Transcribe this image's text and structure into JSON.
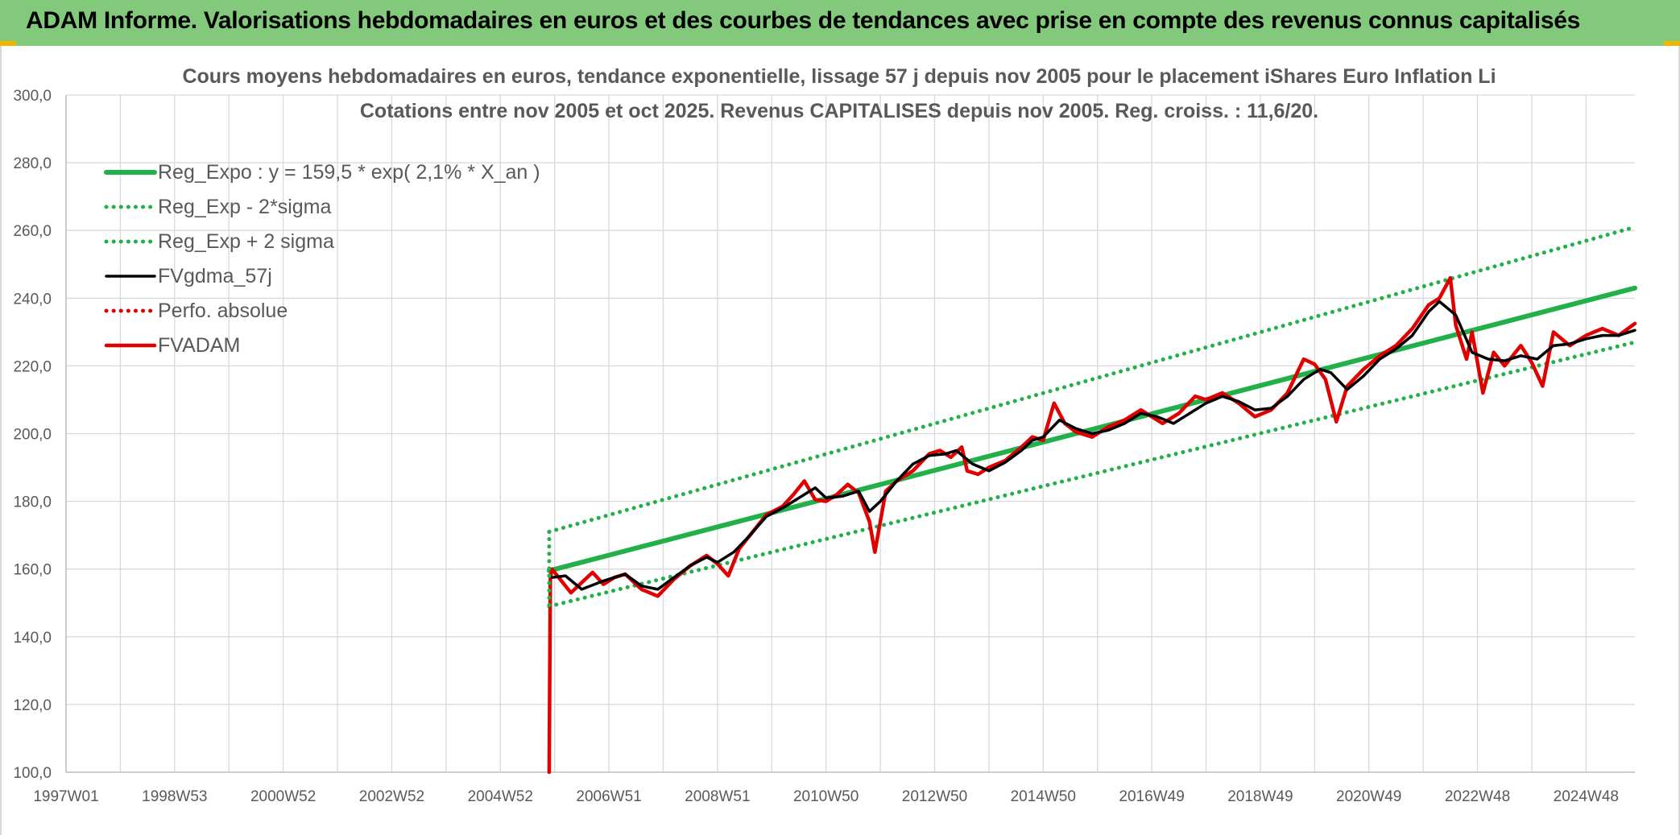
{
  "banner": {
    "title": "ADAM Informe. Valorisations hebdomadaires en euros et des courbes de tendances avec prise en compte des revenus connus capitalisés",
    "color": "#82c97c"
  },
  "chart_data": {
    "type": "line",
    "title": "Cours moyens hebdomadaires en euros, tendance exponentielle, lissage 57 j depuis nov 2005 pour le placement iShares Euro Inflation Li",
    "subtitle": "Cotations entre nov 2005 et oct 2025. Revenus CAPITALISES depuis nov 2005. Reg. croiss. : 11,6/20.",
    "xlabel": "",
    "ylabel": "",
    "ylim": [
      100,
      300
    ],
    "y_ticks": [
      "100,0",
      "120,0",
      "140,0",
      "160,0",
      "180,0",
      "200,0",
      "220,0",
      "240,0",
      "260,0",
      "280,0",
      "300,0"
    ],
    "x_range_years": [
      1997.0,
      2025.9
    ],
    "x_ticks": [
      {
        "label": "1997W01",
        "year": 1997.0
      },
      {
        "label": "1998W53",
        "year": 1999.0
      },
      {
        "label": "2000W52",
        "year": 2001.0
      },
      {
        "label": "2002W52",
        "year": 2003.0
      },
      {
        "label": "2004W52",
        "year": 2005.0
      },
      {
        "label": "2006W51",
        "year": 2007.0
      },
      {
        "label": "2008W51",
        "year": 2009.0
      },
      {
        "label": "2010W50",
        "year": 2011.0
      },
      {
        "label": "2012W50",
        "year": 2013.0
      },
      {
        "label": "2014W50",
        "year": 2015.0
      },
      {
        "label": "2016W49",
        "year": 2017.0
      },
      {
        "label": "2018W49",
        "year": 2019.0
      },
      {
        "label": "2020W49",
        "year": 2021.0
      },
      {
        "label": "2022W48",
        "year": 2023.0
      },
      {
        "label": "2024W48",
        "year": 2025.0
      }
    ],
    "grid": true,
    "legend_position": "top-left",
    "series": [
      {
        "name": "Reg_Expo : y = 159,5 * exp( 2,1% *  X_an )",
        "color": "#22b04b",
        "style": "solid",
        "x": [
          2005.9,
          2025.9
        ],
        "y": [
          159.5,
          243.0
        ]
      },
      {
        "name": "Reg_Exp - 2*sigma",
        "color": "#22b04b",
        "style": "dotted",
        "x": [
          2005.9,
          2025.9
        ],
        "y": [
          149.0,
          227.0
        ]
      },
      {
        "name": "Reg_Exp + 2 sigma",
        "color": "#22b04b",
        "style": "dotted",
        "x": [
          2005.9,
          2025.9
        ],
        "y": [
          171.0,
          261.0
        ]
      },
      {
        "name": "FVgdma_57j",
        "color": "#000000",
        "style": "solid",
        "x": [
          2005.95,
          2006.2,
          2006.5,
          2006.9,
          2007.3,
          2007.6,
          2007.9,
          2008.2,
          2008.5,
          2008.8,
          2009.0,
          2009.3,
          2009.6,
          2009.9,
          2010.2,
          2010.5,
          2010.8,
          2011.0,
          2011.3,
          2011.6,
          2011.8,
          2012.0,
          2012.3,
          2012.6,
          2012.9,
          2013.2,
          2013.4,
          2013.7,
          2014.0,
          2014.3,
          2014.6,
          2014.8,
          2015.0,
          2015.3,
          2015.6,
          2015.9,
          2016.2,
          2016.5,
          2016.8,
          2017.1,
          2017.4,
          2017.7,
          2018.0,
          2018.3,
          2018.6,
          2018.9,
          2019.2,
          2019.5,
          2019.8,
          2020.1,
          2020.3,
          2020.6,
          2020.9,
          2021.2,
          2021.5,
          2021.8,
          2022.1,
          2022.3,
          2022.6,
          2022.9,
          2023.2,
          2023.5,
          2023.8,
          2024.1,
          2024.4,
          2024.7,
          2025.0,
          2025.3,
          2025.6,
          2025.9
        ],
        "y": [
          157.5,
          158.0,
          154.0,
          156.5,
          158.5,
          155.0,
          154.0,
          157.5,
          161.0,
          163.5,
          162.0,
          165.0,
          170.0,
          175.5,
          178.0,
          181.0,
          184.0,
          181.0,
          181.5,
          183.0,
          177.0,
          180.0,
          186.0,
          191.0,
          193.5,
          194.0,
          195.0,
          191.0,
          189.0,
          191.5,
          195.0,
          198.0,
          199.0,
          204.0,
          201.5,
          200.0,
          201.0,
          203.0,
          206.0,
          205.0,
          203.0,
          206.0,
          209.0,
          211.0,
          209.5,
          207.0,
          207.5,
          211.0,
          216.0,
          219.0,
          218.0,
          213.0,
          217.0,
          222.0,
          225.0,
          229.0,
          236.0,
          239.0,
          235.0,
          224.0,
          222.0,
          221.5,
          223.0,
          222.0,
          226.0,
          226.5,
          228.0,
          229.0,
          229.0,
          230.5
        ]
      },
      {
        "name": "Perfo. absolue",
        "color": "#e00000",
        "style": "dotted",
        "x": [],
        "y": []
      },
      {
        "name": "FVADAM",
        "color": "#e00000",
        "style": "solid",
        "x": [
          2005.9,
          2005.92,
          2005.95,
          2006.1,
          2006.3,
          2006.5,
          2006.7,
          2006.9,
          2007.1,
          2007.3,
          2007.6,
          2007.9,
          2008.2,
          2008.5,
          2008.8,
          2009.0,
          2009.2,
          2009.4,
          2009.6,
          2009.9,
          2010.2,
          2010.4,
          2010.6,
          2010.8,
          2011.0,
          2011.2,
          2011.4,
          2011.6,
          2011.8,
          2011.9,
          2012.1,
          2012.3,
          2012.6,
          2012.9,
          2013.1,
          2013.3,
          2013.5,
          2013.6,
          2013.8,
          2014.0,
          2014.3,
          2014.6,
          2014.8,
          2015.0,
          2015.2,
          2015.4,
          2015.6,
          2015.9,
          2016.2,
          2016.5,
          2016.8,
          2017.0,
          2017.2,
          2017.5,
          2017.8,
          2018.0,
          2018.3,
          2018.6,
          2018.9,
          2019.2,
          2019.5,
          2019.8,
          2020.0,
          2020.2,
          2020.4,
          2020.6,
          2020.9,
          2021.2,
          2021.5,
          2021.8,
          2022.1,
          2022.3,
          2022.5,
          2022.6,
          2022.8,
          2022.9,
          2023.1,
          2023.3,
          2023.5,
          2023.8,
          2024.0,
          2024.2,
          2024.4,
          2024.7,
          2025.0,
          2025.3,
          2025.6,
          2025.9
        ],
        "y": [
          100.0,
          157.0,
          160.0,
          157.0,
          153.0,
          156.0,
          159.0,
          155.5,
          157.5,
          158.5,
          154.0,
          152.0,
          157.0,
          161.0,
          164.0,
          161.5,
          158.0,
          166.0,
          170.0,
          176.0,
          178.5,
          182.0,
          186.0,
          180.5,
          180.0,
          182.0,
          185.0,
          182.5,
          174.0,
          165.0,
          183.0,
          186.0,
          189.0,
          194.0,
          195.0,
          193.0,
          196.0,
          189.0,
          188.0,
          190.0,
          192.0,
          196.0,
          199.0,
          198.0,
          209.0,
          203.0,
          200.5,
          199.0,
          202.0,
          204.0,
          207.0,
          205.0,
          203.0,
          206.0,
          211.0,
          210.0,
          212.0,
          209.0,
          205.0,
          207.0,
          212.0,
          222.0,
          220.5,
          216.0,
          203.5,
          214.0,
          219.0,
          223.0,
          226.0,
          231.0,
          238.0,
          240.0,
          246.0,
          232.0,
          222.0,
          230.0,
          212.0,
          224.0,
          220.0,
          226.0,
          221.0,
          214.0,
          230.0,
          226.0,
          229.0,
          231.0,
          229.0,
          232.5
        ]
      }
    ]
  }
}
